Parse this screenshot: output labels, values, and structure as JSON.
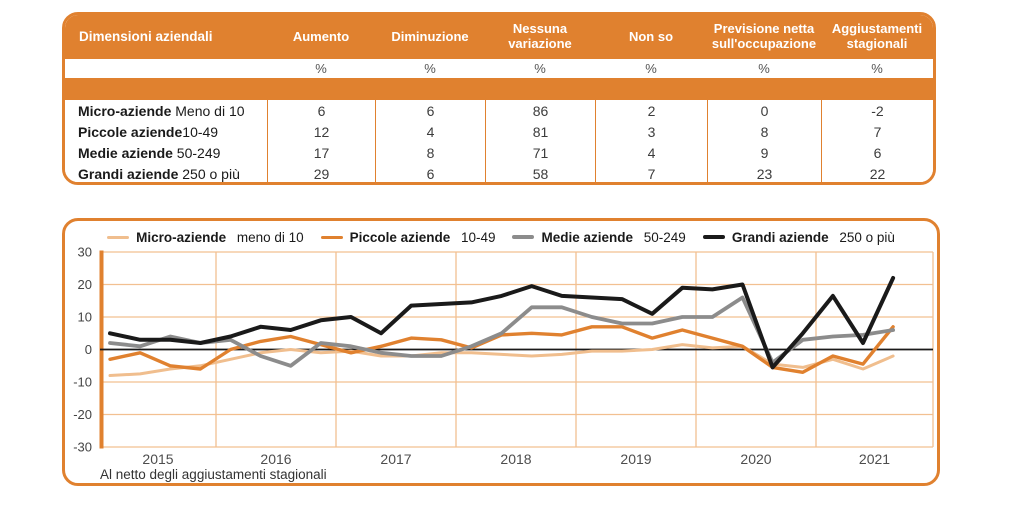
{
  "colors": {
    "orange": "#E0812F",
    "grid": "#F2C091",
    "micro": "#F0BE8E",
    "piccole": "#E0812F",
    "medie": "#8C8C8C",
    "grandi": "#1A1A1A",
    "tick_text": "#444444",
    "year_text": "#4d4d4d"
  },
  "table": {
    "columns": [
      "Dimensioni aziendali",
      "Aumento",
      "Diminuzione",
      "Nessuna variazione",
      "Non so",
      "Previsione netta sull'occupazione",
      "Aggiustamenti stagionali"
    ],
    "unit_row": [
      "%",
      "%",
      "%",
      "%",
      "%",
      "%"
    ],
    "rows": [
      {
        "label_bold": "Micro-aziende",
        "label_rest": " Meno di 10",
        "values": [
          6,
          6,
          86,
          2,
          0,
          -2
        ]
      },
      {
        "label_bold": "Piccole aziende",
        "label_rest": "10-49",
        "values": [
          12,
          4,
          81,
          3,
          8,
          7
        ]
      },
      {
        "label_bold": "Medie aziende",
        "label_rest": " 50-249",
        "values": [
          17,
          8,
          71,
          4,
          9,
          6
        ]
      },
      {
        "label_bold": "Grandi aziende",
        "label_rest": " 250 o più",
        "values": [
          29,
          6,
          58,
          7,
          23,
          22
        ]
      }
    ]
  },
  "chart_data": {
    "type": "line",
    "title": "",
    "xlabel": "",
    "ylabel": "",
    "x_labels": [
      "2015",
      "2016",
      "2017",
      "2018",
      "2019",
      "2020",
      "2021"
    ],
    "y_ticks": [
      30,
      20,
      10,
      0,
      -10,
      -20,
      -30
    ],
    "ylim": [
      -30,
      30
    ],
    "points_per_year": 4,
    "x_start": "2015-Q1",
    "grid": true,
    "legend_position": "top",
    "zero_line": true,
    "footnote": "Al netto degli aggiustamenti stagionali",
    "series": [
      {
        "name": "Micro-aziende",
        "legend_suffix": "meno di 10",
        "color": "#F0BE8E",
        "stroke_width": 3,
        "values": [
          -8,
          -7.5,
          -6,
          -5,
          -3,
          -1,
          0,
          -1,
          -0.5,
          -2,
          -2,
          -1,
          -1,
          -1.5,
          -2,
          -1.5,
          -0.5,
          -0.5,
          0,
          1.5,
          0.5,
          1,
          -4.5,
          -5.5,
          -3,
          -6,
          -2
        ]
      },
      {
        "name": "Piccole aziende",
        "legend_suffix": "10-49",
        "color": "#E0812F",
        "stroke_width": 3.4,
        "values": [
          -3,
          -1,
          -5,
          -6,
          0,
          2.5,
          4,
          1.5,
          -1,
          1,
          3.5,
          3,
          0.5,
          4.5,
          5,
          4.5,
          7,
          7,
          3.5,
          6,
          3.5,
          1,
          -5.5,
          -7,
          -2,
          -4.5,
          7
        ]
      },
      {
        "name": "Medie aziende",
        "legend_suffix": "50-249",
        "color": "#8C8C8C",
        "stroke_width": 3.8,
        "values": [
          2,
          1,
          4,
          2,
          3,
          -2,
          -5,
          2,
          1,
          -1,
          -2,
          -2,
          1,
          5,
          13,
          13,
          10,
          8,
          8,
          10,
          10,
          16,
          -4,
          3,
          4,
          4.5,
          6
        ]
      },
      {
        "name": "Grandi aziende",
        "legend_suffix": "250 o più",
        "color": "#1A1A1A",
        "stroke_width": 4,
        "values": [
          5,
          3,
          3,
          2,
          4,
          7,
          6,
          9,
          10,
          5,
          13.5,
          14,
          14.5,
          16.5,
          19.5,
          16.5,
          16,
          15.5,
          11,
          19,
          18.5,
          20,
          -5.5,
          5,
          16.5,
          2,
          22
        ]
      }
    ]
  }
}
